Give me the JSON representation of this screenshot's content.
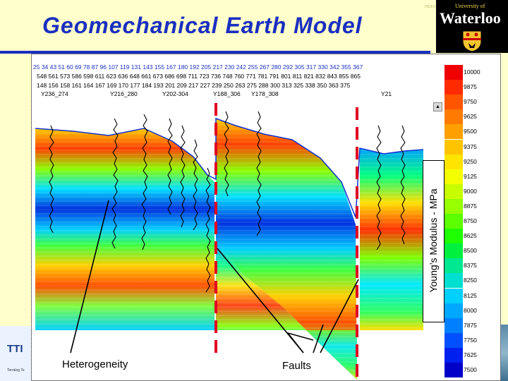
{
  "slide": {
    "title": "Geomechanical Earth Model",
    "tiny_tag": "INDEX",
    "logo": {
      "university": "University of",
      "name": "Waterloo"
    },
    "footer_left_brand": "TTI",
    "footer_left_caption": "Terralog Te"
  },
  "section_header": {
    "row1": "25 34 43 51 60 69 78 87 96 107 119 131 143 155 167 180 192 205 217 230 242 255 267 280 292 305 317 330 342 355 367",
    "row2": "548 561 573 586 598 611 623 636 648 661 673 686 698 711 723 736 748 760 771 781 791 801 811 821 832 843 855 865",
    "row3": "148 156 158 161 164 167 169   170 177 184 193 201 209 217 227 239 250 263 275 288 300 313 325 338 350 363 375",
    "wells": [
      "Y236_274",
      "Y216_280",
      "Y202-304",
      "Y188_306",
      "Y178_308",
      "Y21"
    ]
  },
  "colorbar": {
    "label": "Young’s Modulus - MPa",
    "ticks": [
      "10000",
      "9875",
      "9750",
      "9625",
      "9500",
      "9375",
      "9250",
      "9125",
      "9000",
      "8875",
      "8750",
      "8625",
      "8500",
      "8375",
      "8250",
      "8125",
      "8000",
      "7875",
      "7750",
      "7625",
      "7500"
    ],
    "colors": [
      "#f00000",
      "#ff2a00",
      "#ff5500",
      "#ff7a00",
      "#ffa000",
      "#ffc400",
      "#ffe400",
      "#f4ff00",
      "#c8ff00",
      "#96ff00",
      "#5cff00",
      "#1eff00",
      "#00f040",
      "#00e890",
      "#00e0d0",
      "#00d0ff",
      "#00a8ff",
      "#0080ff",
      "#0050ff",
      "#0020f0",
      "#0000c8"
    ]
  },
  "annotations": {
    "heterogeneity": "Heterogeneity",
    "faults": "Faults"
  }
}
